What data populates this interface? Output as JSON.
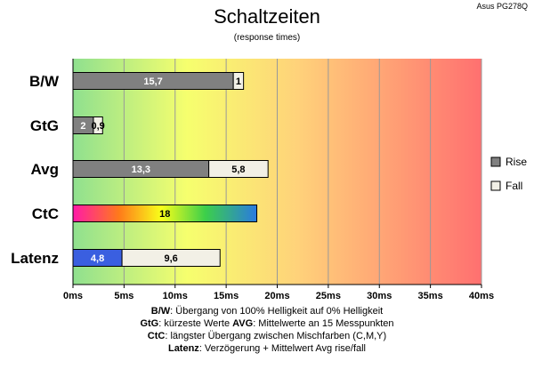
{
  "header": {
    "title": "Schaltzeiten",
    "subtitle": "(response times)",
    "model": "Asus PG278Q"
  },
  "chart_data": {
    "type": "bar",
    "orientation": "horizontal",
    "stacked": true,
    "title": "Schaltzeiten",
    "subtitle": "(response times)",
    "categories": [
      "B/W",
      "GtG",
      "Avg",
      "CtC",
      "Latenz"
    ],
    "x_ticks": [
      "0ms",
      "5ms",
      "10ms",
      "15ms",
      "20ms",
      "25ms",
      "30ms",
      "35ms",
      "40ms"
    ],
    "xlim": [
      0,
      40
    ],
    "grid": true,
    "background": "gradient green-yellow-red",
    "legend_position": "right",
    "legend": [
      {
        "name": "Rise",
        "color": "#808080"
      },
      {
        "name": "Fall",
        "color": "#f2f0e6"
      }
    ],
    "bars": [
      {
        "category": "B/W",
        "segments": [
          {
            "series": "Rise",
            "value": 15.7,
            "label": "15,7"
          },
          {
            "series": "Fall",
            "value": 1,
            "label": "1"
          }
        ]
      },
      {
        "category": "GtG",
        "segments": [
          {
            "series": "Rise",
            "value": 2,
            "label": "2"
          },
          {
            "series": "Fall",
            "value": 0.9,
            "label": "0,9"
          }
        ]
      },
      {
        "category": "Avg",
        "segments": [
          {
            "series": "Rise",
            "value": 13.3,
            "label": "13,3"
          },
          {
            "series": "Fall",
            "value": 5.8,
            "label": "5,8"
          }
        ]
      },
      {
        "category": "CtC",
        "segments": [
          {
            "series": "CtC",
            "value": 18,
            "label": "18",
            "fill": "rainbow"
          }
        ]
      },
      {
        "category": "Latenz",
        "segments": [
          {
            "series": "Latenz",
            "value": 4.8,
            "label": "4,8",
            "fill": "#3a5fe0"
          },
          {
            "series": "Fall",
            "value": 9.6,
            "label": "9,6"
          }
        ]
      }
    ]
  },
  "footnotes": [
    [
      {
        "t": "B/W",
        "b": true
      },
      {
        "t": ":  Übergang von 100% Helligkeit auf 0% Helligkeit",
        "b": false
      }
    ],
    [
      {
        "t": "GtG",
        "b": true
      },
      {
        "t": ": kürzeste  Werte       ",
        "b": false
      },
      {
        "t": "AVG",
        "b": true
      },
      {
        "t": ": Mittelwerte  an 15 Messpunkten",
        "b": false
      }
    ],
    [
      {
        "t": "CtC",
        "b": true
      },
      {
        "t": ": längster Übergang  zwischen Mischfarben (C,M,Y)",
        "b": false
      }
    ],
    [
      {
        "t": "Latenz",
        "b": true
      },
      {
        "t": ": Verzögerung  + Mittelwert Avg rise/fall",
        "b": false
      }
    ]
  ]
}
